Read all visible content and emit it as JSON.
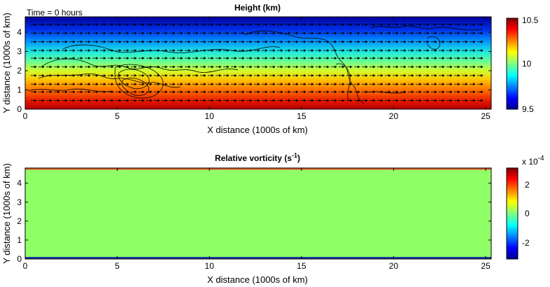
{
  "time_label": "Time = 0 hours",
  "chart_data": [
    {
      "type": "heatmap",
      "title": "Height (km)",
      "xlabel": "X distance (1000s of km)",
      "ylabel": "Y distance (1000s of km)",
      "xlim": [
        0,
        25.3
      ],
      "ylim": [
        0,
        4.8
      ],
      "xticks": [
        "0",
        "5",
        "10",
        "15",
        "20",
        "25"
      ],
      "yticks": [
        "0",
        "1",
        "2",
        "3",
        "4"
      ],
      "colormap": "jet",
      "clim": [
        9.5,
        10.5
      ],
      "colorbar_ticks": [
        "9.5",
        "10",
        "10.5"
      ],
      "field": {
        "description_values_y": [
          0,
          0.4,
          0.8,
          1.2,
          1.6,
          2.0,
          2.4,
          2.8,
          3.2,
          3.6,
          4.0,
          4.4,
          4.8
        ],
        "height_km": [
          10.5,
          10.45,
          10.38,
          10.3,
          10.2,
          10.1,
          10.0,
          9.9,
          9.8,
          9.7,
          9.62,
          9.55,
          9.5
        ]
      },
      "wind_arrow_rows_y": [
        0.45,
        0.9,
        1.3,
        1.75,
        2.2,
        2.65,
        3.05,
        3.5,
        3.95,
        4.4
      ]
    },
    {
      "type": "heatmap",
      "title": "Relative vorticity (s⁻¹)",
      "title_main": "Relative vorticity (s",
      "title_sup": "-1",
      "title_end": ")",
      "xlabel": "X distance (1000s of km)",
      "ylabel": "Y distance (1000s of km)",
      "xlim": [
        0,
        25.3
      ],
      "ylim": [
        0,
        4.8
      ],
      "xticks": [
        "0",
        "5",
        "10",
        "15",
        "20",
        "25"
      ],
      "yticks": [
        "0",
        "1",
        "2",
        "3",
        "4"
      ],
      "colormap": "jet",
      "clim": [
        -3,
        3
      ],
      "colorbar_ticks": [
        "2",
        "0",
        "-2"
      ],
      "colorbar_exponent_base": "x 10",
      "colorbar_exponent": "-4",
      "field_value": 0.4,
      "edge_bands": [
        {
          "y": 0.05,
          "value": -2.8
        },
        {
          "y": 4.76,
          "value": 2.2
        }
      ]
    }
  ]
}
